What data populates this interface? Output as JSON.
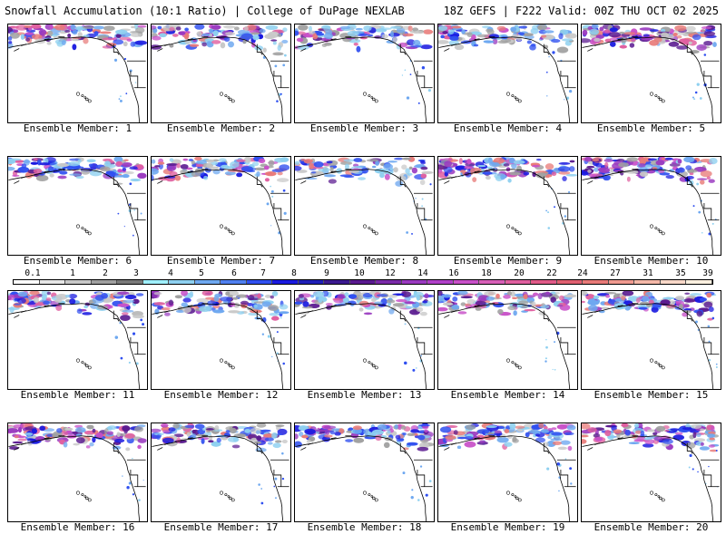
{
  "header": {
    "left": "Snowfall Accumulation (10:1 Ratio) | College of DuPage NEXLAB",
    "right": "18Z GEFS | F222 Valid: 00Z THU OCT 02 2025"
  },
  "members": [
    {
      "label": "Ensemble Member: 1",
      "intensity": 0.8
    },
    {
      "label": "Ensemble Member: 2",
      "intensity": 0.6
    },
    {
      "label": "Ensemble Member: 3",
      "intensity": 0.4
    },
    {
      "label": "Ensemble Member: 4",
      "intensity": 0.6
    },
    {
      "label": "Ensemble Member: 5",
      "intensity": 0.9
    },
    {
      "label": "Ensemble Member: 6",
      "intensity": 0.6
    },
    {
      "label": "Ensemble Member: 7",
      "intensity": 0.7
    },
    {
      "label": "Ensemble Member: 8",
      "intensity": 0.4
    },
    {
      "label": "Ensemble Member: 9",
      "intensity": 0.8
    },
    {
      "label": "Ensemble Member: 10",
      "intensity": 0.9
    },
    {
      "label": "Ensemble Member: 11",
      "intensity": 0.6
    },
    {
      "label": "Ensemble Member: 12",
      "intensity": 0.6
    },
    {
      "label": "Ensemble Member: 13",
      "intensity": 0.5
    },
    {
      "label": "Ensemble Member: 14",
      "intensity": 0.6
    },
    {
      "label": "Ensemble Member: 15",
      "intensity": 0.7
    },
    {
      "label": "Ensemble Member: 16",
      "intensity": 0.8
    },
    {
      "label": "Ensemble Member: 17",
      "intensity": 0.6
    },
    {
      "label": "Ensemble Member: 18",
      "intensity": 0.7
    },
    {
      "label": "Ensemble Member: 19",
      "intensity": 0.6
    },
    {
      "label": "Ensemble Member: 20",
      "intensity": 0.8
    }
  ],
  "legend": {
    "labels": [
      "0.1",
      "1",
      "2",
      "3",
      "4",
      "5",
      "6",
      "7",
      "8",
      "9",
      "10",
      "12",
      "14",
      "16",
      "18",
      "20",
      "22",
      "24",
      "27",
      "31",
      "35",
      "39"
    ],
    "colors": [
      "#ffffff",
      "#e6e6e6",
      "#c8c8c8",
      "#a0a0a0",
      "#7a7a7a",
      "#a0f0ff",
      "#8ed0f0",
      "#6ea8f0",
      "#5080f0",
      "#3050f0",
      "#1a1ae0",
      "#2020b8",
      "#3c1a90",
      "#5a1a90",
      "#7a2aa8",
      "#9a3ac0",
      "#b040c8",
      "#c850c8",
      "#d860b8",
      "#e060a0",
      "#e05a88",
      "#e06070",
      "#e87a78",
      "#f09a90",
      "#f4b8a8",
      "#f8d8c8",
      "#fcf0e0"
    ]
  }
}
